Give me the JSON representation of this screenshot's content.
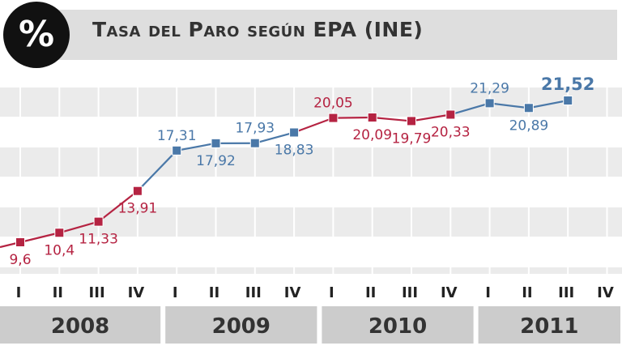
{
  "header": {
    "badge": "%",
    "title": "Tasa del Paro según EPA (INE)"
  },
  "colors": {
    "rising": "#b52342",
    "steady": "#4a78a8",
    "band": "#ebebeb",
    "grid": "#ffffff",
    "year_box": "#cccccc"
  },
  "chart_data": {
    "type": "line",
    "title": "Tasa del Paro según EPA (INE)",
    "xlabel": "",
    "ylabel": "",
    "quarters": [
      "I",
      "II",
      "III",
      "IV"
    ],
    "years": [
      "2008",
      "2009",
      "2010",
      "2011"
    ],
    "categories": [
      "2008 I",
      "2008 II",
      "2008 III",
      "2008 IV",
      "2009 I",
      "2009 II",
      "2009 III",
      "2009 IV",
      "2010 I",
      "2010 II",
      "2010 III",
      "2010 IV",
      "2011 I",
      "2011 II",
      "2011 III"
    ],
    "values": [
      9.6,
      10.4,
      11.33,
      13.91,
      17.31,
      17.92,
      17.93,
      18.83,
      20.05,
      20.09,
      19.79,
      20.33,
      21.29,
      20.89,
      21.52
    ],
    "labels": [
      "9,6",
      "10,4",
      "11,33",
      "13,91",
      "17,31",
      "17,92",
      "17,93",
      "18,83",
      "20,05",
      "20,09",
      "19,79",
      "20,33",
      "21,29",
      "20,89",
      "21,52"
    ],
    "series_colors": [
      "rising",
      "rising",
      "rising",
      "rising",
      "steady",
      "steady",
      "steady",
      "steady",
      "rising",
      "rising",
      "rising",
      "rising",
      "steady",
      "steady",
      "steady"
    ],
    "ylim": [
      8,
      24
    ],
    "grid": true,
    "legend": "none"
  }
}
